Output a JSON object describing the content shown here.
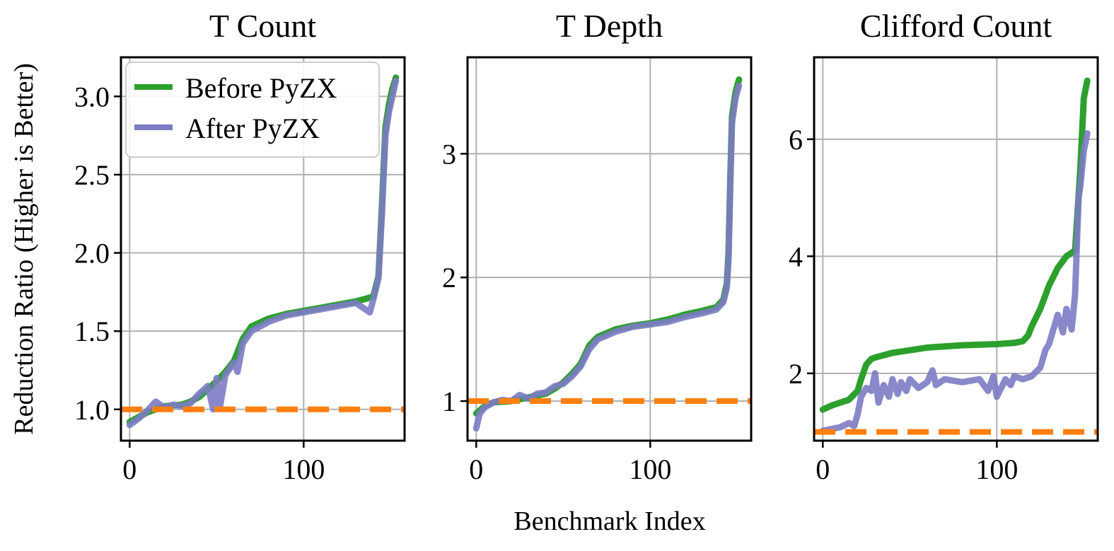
{
  "figure": {
    "ylabel": "Reduction Ratio (Higher is Better)",
    "xlabel": "Benchmark Index"
  },
  "legend": {
    "before_label": "Before PyZX",
    "after_label": "After PyZX",
    "before_color": "#2ca02c",
    "after_color": "#7b7bc4"
  },
  "reference_line_color": "#ff7f0e",
  "chart_data": [
    {
      "type": "line",
      "title": "T Count",
      "xlim": [
        -5,
        158
      ],
      "ylim": [
        0.8,
        3.25
      ],
      "xticks": [
        0,
        100
      ],
      "yticks": [
        1.0,
        1.5,
        2.0,
        2.5,
        3.0
      ],
      "ytick_labels": [
        "1.0",
        "1.5",
        "2.0",
        "2.5",
        "3.0"
      ],
      "reference": 1.0,
      "series": [
        {
          "name": "Before PyZX",
          "x": [
            0,
            5,
            10,
            20,
            30,
            35,
            40,
            45,
            50,
            55,
            60,
            65,
            70,
            80,
            90,
            100,
            110,
            120,
            130,
            140,
            143,
            145,
            147,
            149,
            151,
            153
          ],
          "y": [
            0.92,
            0.95,
            0.98,
            1.02,
            1.03,
            1.05,
            1.08,
            1.13,
            1.18,
            1.24,
            1.31,
            1.45,
            1.53,
            1.58,
            1.61,
            1.63,
            1.65,
            1.67,
            1.69,
            1.72,
            1.85,
            2.3,
            2.8,
            2.95,
            3.05,
            3.12
          ]
        },
        {
          "name": "After PyZX",
          "x": [
            0,
            5,
            10,
            15,
            20,
            25,
            30,
            35,
            40,
            45,
            48,
            50,
            52,
            55,
            60,
            62,
            65,
            70,
            80,
            90,
            100,
            110,
            120,
            130,
            138,
            140,
            143,
            145,
            147,
            149,
            151,
            153
          ],
          "y": [
            0.9,
            0.94,
            0.99,
            1.05,
            1.01,
            1.03,
            1.02,
            1.04,
            1.1,
            1.15,
            1.0,
            1.2,
            1.02,
            1.22,
            1.3,
            1.24,
            1.42,
            1.5,
            1.56,
            1.6,
            1.62,
            1.64,
            1.66,
            1.68,
            1.62,
            1.7,
            1.84,
            2.25,
            2.75,
            2.9,
            3.0,
            3.1
          ]
        }
      ]
    },
    {
      "type": "line",
      "title": "T Depth",
      "xlim": [
        -5,
        158
      ],
      "ylim": [
        0.68,
        3.78
      ],
      "xticks": [
        0,
        100
      ],
      "yticks": [
        1,
        2,
        3
      ],
      "ytick_labels": [
        "1",
        "2",
        "3"
      ],
      "reference": 1.0,
      "series": [
        {
          "name": "Before PyZX",
          "x": [
            0,
            5,
            10,
            20,
            30,
            40,
            45,
            50,
            55,
            60,
            65,
            70,
            80,
            90,
            100,
            110,
            120,
            130,
            138,
            142,
            144,
            145,
            146,
            147,
            149,
            151
          ],
          "y": [
            0.9,
            0.96,
            0.99,
            1.0,
            1.03,
            1.06,
            1.1,
            1.15,
            1.22,
            1.3,
            1.45,
            1.52,
            1.58,
            1.61,
            1.63,
            1.66,
            1.7,
            1.73,
            1.76,
            1.82,
            1.95,
            2.2,
            2.8,
            3.3,
            3.5,
            3.6
          ]
        },
        {
          "name": "After PyZX",
          "x": [
            0,
            2,
            5,
            10,
            15,
            20,
            25,
            30,
            35,
            40,
            45,
            50,
            55,
            60,
            65,
            70,
            80,
            90,
            100,
            110,
            120,
            130,
            138,
            142,
            144,
            145,
            146,
            147,
            149,
            151
          ],
          "y": [
            0.78,
            0.9,
            0.95,
            0.99,
            1.01,
            1.0,
            1.05,
            1.02,
            1.06,
            1.07,
            1.12,
            1.14,
            1.2,
            1.28,
            1.42,
            1.5,
            1.56,
            1.6,
            1.62,
            1.64,
            1.68,
            1.71,
            1.74,
            1.8,
            1.92,
            2.15,
            2.75,
            3.25,
            3.45,
            3.55
          ]
        }
      ]
    },
    {
      "type": "line",
      "title": "Clifford Count",
      "xlim": [
        -5,
        158
      ],
      "ylim": [
        0.85,
        7.4
      ],
      "xticks": [
        0,
        100
      ],
      "yticks": [
        2,
        4,
        6
      ],
      "ytick_labels": [
        "2",
        "4",
        "6"
      ],
      "reference": 1.0,
      "series": [
        {
          "name": "Before PyZX",
          "x": [
            0,
            5,
            10,
            15,
            20,
            22,
            25,
            28,
            30,
            40,
            60,
            80,
            100,
            110,
            115,
            118,
            120,
            125,
            130,
            135,
            140,
            145,
            148,
            150,
            152
          ],
          "y": [
            1.38,
            1.45,
            1.5,
            1.55,
            1.7,
            1.9,
            2.15,
            2.25,
            2.27,
            2.35,
            2.44,
            2.48,
            2.5,
            2.52,
            2.55,
            2.65,
            2.8,
            3.1,
            3.5,
            3.8,
            4.0,
            4.1,
            5.5,
            6.7,
            7.0
          ]
        },
        {
          "name": "After PyZX",
          "x": [
            0,
            5,
            10,
            15,
            18,
            20,
            22,
            25,
            28,
            30,
            32,
            35,
            38,
            40,
            43,
            45,
            48,
            50,
            55,
            60,
            63,
            65,
            70,
            80,
            90,
            95,
            98,
            100,
            105,
            108,
            110,
            115,
            120,
            125,
            128,
            130,
            135,
            138,
            140,
            143,
            145,
            147,
            148,
            150,
            152
          ],
          "y": [
            1.02,
            1.05,
            1.08,
            1.15,
            1.1,
            1.3,
            1.6,
            1.75,
            1.7,
            2.0,
            1.5,
            1.8,
            1.6,
            1.9,
            1.65,
            1.85,
            1.7,
            1.9,
            1.75,
            1.85,
            2.05,
            1.8,
            1.9,
            1.85,
            1.9,
            1.7,
            1.95,
            1.6,
            1.9,
            1.8,
            1.95,
            1.9,
            1.95,
            2.1,
            2.4,
            2.5,
            3.0,
            2.7,
            3.1,
            2.75,
            3.35,
            5.0,
            5.2,
            5.8,
            6.1
          ]
        }
      ]
    }
  ]
}
